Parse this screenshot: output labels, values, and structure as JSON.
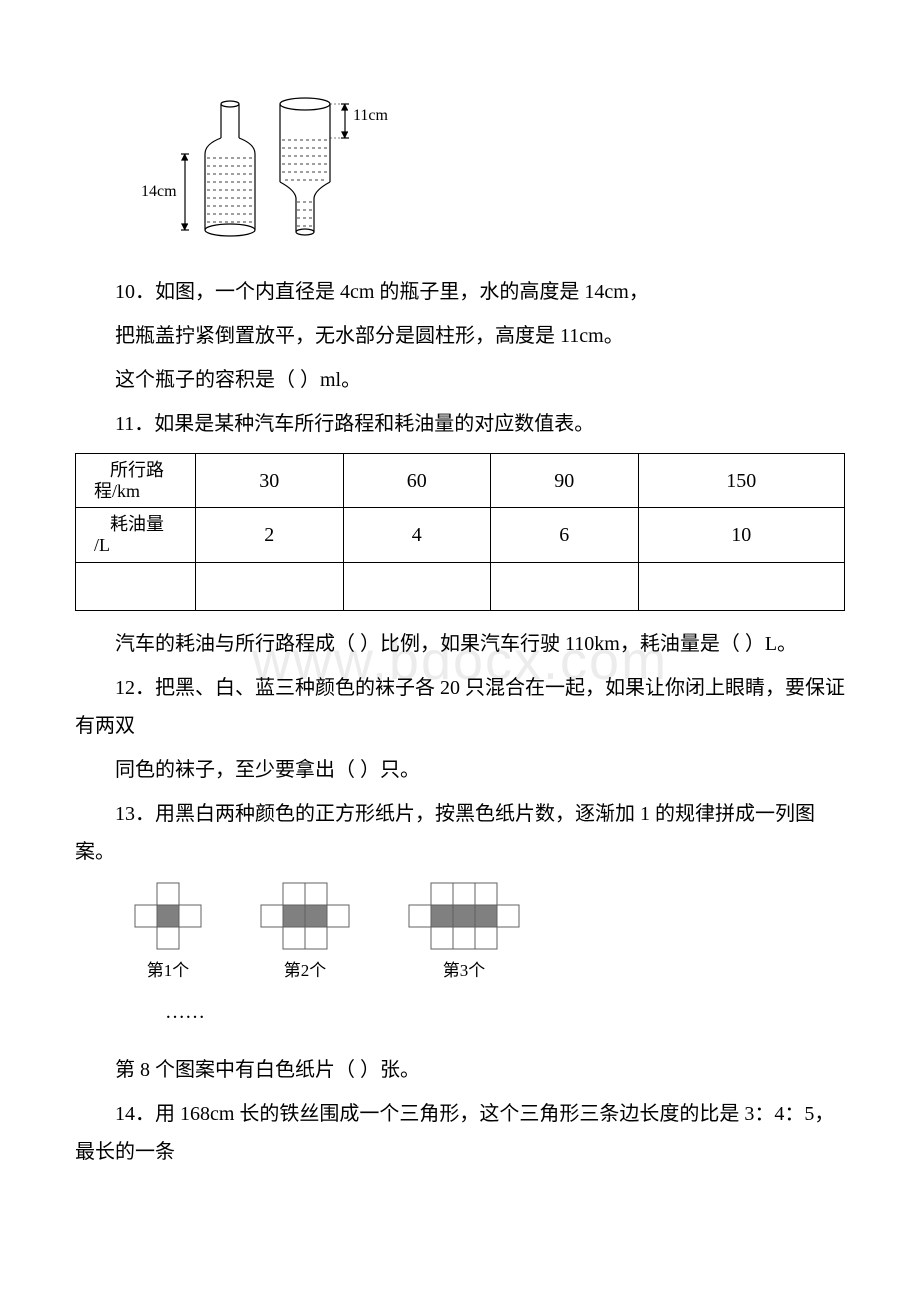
{
  "watermark": "www.bdocx.com",
  "bottle": {
    "left_label": "14cm",
    "right_label": "11cm",
    "stroke": "#000000"
  },
  "q10": {
    "text_l1": "10．如图，一个内直径是 4cm 的瓶子里，水的高度是 14cm，",
    "text_l2": "把瓶盖拧紧倒置放平，无水部分是圆柱形，高度是 11cm。",
    "text_l3": "这个瓶子的容积是（  ）ml。"
  },
  "q11": {
    "intro": "11．如果是某种汽车所行路程和耗油量的对应数值表。",
    "table": {
      "header_distance_l1": "所行路",
      "header_distance_l2": "程/km",
      "header_fuel_l1": "耗油量",
      "header_fuel_l2": "/L",
      "distances": [
        "30",
        "60",
        "90",
        "150"
      ],
      "fuels": [
        "2",
        "4",
        "6",
        "10"
      ]
    },
    "tail_l1": "汽车的耗油与所行路程成（  ）比例，如果汽车行驶 110km，耗油量是（   ）L。"
  },
  "q12": {
    "l1": "12．把黑、白、蓝三种颜色的袜子各 20 只混合在一起，如果让你闭上眼睛，要保证有两双",
    "l2": "同色的袜子，至少要拿出（  ）只。"
  },
  "q13": {
    "l1": "13．用黑白两种颜色的正方形纸片，按黑色纸片数，逐渐加 1 的规律拼成一列图案。",
    "labels": [
      "第1个",
      "第2个",
      "第3个"
    ],
    "ellipsis": "……",
    "tail": "第 8 个图案中有白色纸片（  ）张。",
    "cell_size": 22,
    "stroke": "#606060",
    "fill_black": "#808080",
    "fill_white": "#ffffff"
  },
  "q14": {
    "text": "14．用 168cm 长的铁丝围成一个三角形，这个三角形三条边长度的比是 3：4：5，最长的一条"
  }
}
